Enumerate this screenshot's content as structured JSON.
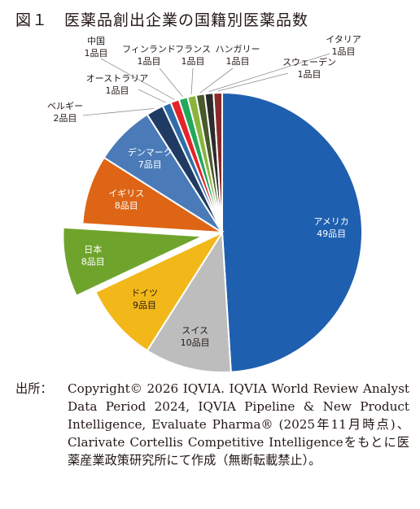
{
  "title": "図１　医薬品創出企業の国籍別医薬品数",
  "source": {
    "label": "出所：",
    "text": "Copyright© 2026 IQVIA. IQVIA World Review Analyst Data Period 2024, IQVIA Pipeline & New Product Intelligence, Evaluate Pharma® (2025年11月時点)、Clarivate Cortellis Competitive Intelligenceをもとに医薬産業政策研究所にて作成（無断転載禁止）。"
  },
  "chart_data": {
    "type": "pie",
    "title": "図１　医薬品創出企業の国籍別医薬品数",
    "unit": "品目",
    "exploded": [
      "日本"
    ],
    "slices": [
      {
        "name": "アメリカ",
        "value": 49,
        "label": "49品目",
        "color": "#1f5faf"
      },
      {
        "name": "スイス",
        "value": 10,
        "label": "10品目",
        "color": "#bdbdbd"
      },
      {
        "name": "ドイツ",
        "value": 9,
        "label": "9品目",
        "color": "#f2b81a"
      },
      {
        "name": "日本",
        "value": 8,
        "label": "8品目",
        "color": "#6fa42c"
      },
      {
        "name": "イギリス",
        "value": 8,
        "label": "8品目",
        "color": "#de6515"
      },
      {
        "name": "デンマーク",
        "value": 7,
        "label": "7品目",
        "color": "#4a7bb8"
      },
      {
        "name": "ベルギー",
        "value": 2,
        "label": "2品目",
        "color": "#1f3b63"
      },
      {
        "name": "オーストラリア",
        "value": 1,
        "label": "1品目",
        "color": "#2e6da8"
      },
      {
        "name": "中国",
        "value": 1,
        "label": "1品目",
        "color": "#e5232a"
      },
      {
        "name": "フィンランド",
        "value": 1,
        "label": "1品目",
        "color": "#21a85a"
      },
      {
        "name": "フランス",
        "value": 1,
        "label": "1品目",
        "color": "#8ab43c"
      },
      {
        "name": "ハンガリー",
        "value": 1,
        "label": "1品目",
        "color": "#48592c"
      },
      {
        "name": "イタリア",
        "value": 1,
        "label": "1品目",
        "color": "#2b2b2b"
      },
      {
        "name": "スウェーデン",
        "value": 1,
        "label": "1品目",
        "color": "#8a2a2a"
      }
    ]
  }
}
